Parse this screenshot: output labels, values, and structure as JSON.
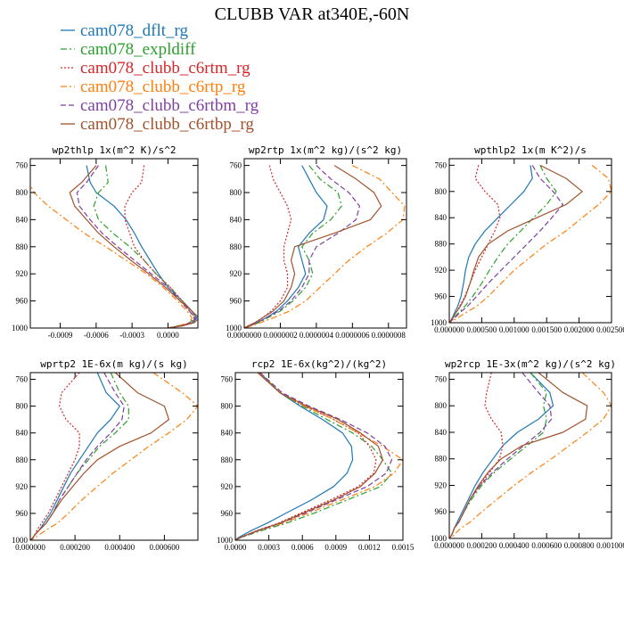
{
  "figure": {
    "title": "CLUBB VAR at340E,-60N"
  },
  "legend": [
    {
      "name": "cam078_dflt_rg",
      "color": "#1f77b4",
      "dash": "solid"
    },
    {
      "name": "cam078_expldiff",
      "color": "#2ca02c",
      "dash": "dashdot"
    },
    {
      "name": "cam078_clubb_c6rtm_rg",
      "color": "#d62728",
      "dash": "dotted"
    },
    {
      "name": "cam078_clubb_c6rtp_rg",
      "color": "#ff7f0e",
      "dash": "dashdot"
    },
    {
      "name": "cam078_clubb_c6rtbm_rg",
      "color": "#7f3fa0",
      "dash": "dashed"
    },
    {
      "name": "cam078_clubb_c6rtbp_rg",
      "color": "#a0522d",
      "dash": "solid"
    }
  ],
  "chart_data": [
    {
      "type": "line",
      "title": "wp2thlp  1x(m^2 K)/s^2",
      "xlim": [
        -0.00115,
        0.00025
      ],
      "ylim": [
        750,
        1000
      ],
      "y_inverted": true,
      "yticks": [
        760,
        800,
        840,
        880,
        920,
        960,
        1000
      ],
      "xticks": [
        -0.0009,
        -0.0006,
        -0.0003,
        0.0
      ],
      "xtick_labels": [
        "-0.0009",
        "-0.0006",
        "-0.0003",
        "0.0000"
      ],
      "y": [
        760,
        785,
        800,
        820,
        840,
        860,
        880,
        900,
        920,
        940,
        960,
        975,
        985,
        992,
        997,
        1000
      ],
      "series": [
        {
          "values": [
            -0.00068,
            -0.00065,
            -0.0006,
            -0.00045,
            -0.00035,
            -0.00028,
            -0.00022,
            -0.00015,
            -8e-05,
            0.0,
            0.00012,
            0.0002,
            0.00024,
            0.00021,
            0.0001,
            0.0
          ]
        },
        {
          "values": [
            -0.00052,
            -0.0005,
            -0.00058,
            -0.00062,
            -0.00058,
            -0.00046,
            -0.00032,
            -0.0002,
            -0.0001,
            2e-05,
            0.00012,
            0.00018,
            0.00022,
            0.00018,
            8e-05,
            0.0
          ]
        },
        {
          "values": [
            -0.0002,
            -0.00022,
            -0.0003,
            -0.00036,
            -0.00036,
            -0.00032,
            -0.00028,
            -0.0002,
            -0.0001,
            2e-05,
            0.00012,
            0.0002,
            0.00022,
            0.0002,
            0.0001,
            0.0
          ]
        },
        {
          "values": [
            -0.00115,
            -0.00116,
            -0.00112,
            -0.001,
            -0.00085,
            -0.0007,
            -0.00052,
            -0.00035,
            -0.00018,
            -4e-05,
            8e-05,
            0.00016,
            0.0002,
            0.00018,
            8e-05,
            0.0
          ]
        },
        {
          "values": [
            -0.00058,
            -0.00068,
            -0.00076,
            -0.00074,
            -0.00065,
            -0.00055,
            -0.00042,
            -0.00028,
            -0.00014,
            0.0,
            0.0001,
            0.00018,
            0.00023,
            0.0002,
            0.0001,
            0.0
          ]
        },
        {
          "values": [
            -0.0006,
            -0.00072,
            -0.00082,
            -0.00078,
            -0.00068,
            -0.00058,
            -0.00045,
            -0.00031,
            -0.00016,
            -2e-05,
            0.0001,
            0.0002,
            0.00026,
            0.00022,
            0.00012,
            0.0
          ]
        }
      ]
    },
    {
      "type": "line",
      "title": "wp2rtp  1x(m^2 kg)/(s^2 kg)",
      "xlim": [
        0.0,
        9e-07
      ],
      "ylim": [
        750,
        1000
      ],
      "y_inverted": true,
      "yticks": [
        760,
        800,
        840,
        880,
        920,
        960,
        1000
      ],
      "xticks": [
        0.0,
        2e-07,
        4e-07,
        6e-07,
        8e-07
      ],
      "xtick_labels": [
        "0.0000000",
        "0.0000002",
        "0.0000004",
        "0.0000006",
        "0.0000008"
      ],
      "y": [
        760,
        780,
        800,
        820,
        840,
        860,
        880,
        900,
        920,
        940,
        960,
        975,
        985,
        992,
        997,
        1000
      ],
      "series": [
        {
          "values": [
            3.2e-07,
            3.6e-07,
            4e-07,
            4.6e-07,
            4.4e-07,
            3.6e-07,
            3e-07,
            3.2e-07,
            3.4e-07,
            3e-07,
            2.4e-07,
            1.8e-07,
            1.2e-07,
            7e-08,
            3e-08,
            0.0
          ]
        },
        {
          "values": [
            3.6e-07,
            4.2e-07,
            5.2e-07,
            5.4e-07,
            4.8e-07,
            3.8e-07,
            3.2e-07,
            3.6e-07,
            3.8e-07,
            3.4e-07,
            2.7e-07,
            2e-07,
            1.3e-07,
            8e-08,
            3e-08,
            0.0
          ]
        },
        {
          "values": [
            1.4e-07,
            1.6e-07,
            2e-07,
            2.4e-07,
            2.6e-07,
            2.4e-07,
            2.2e-07,
            2.2e-07,
            2.4e-07,
            2.4e-07,
            2e-07,
            1.5e-07,
            1e-07,
            6e-08,
            2e-08,
            0.0
          ]
        },
        {
          "values": [
            6e-07,
            7.5e-07,
            8.2e-07,
            8.9e-07,
            8.8e-07,
            7.9e-07,
            6.8e-07,
            5.8e-07,
            5e-07,
            4.2e-07,
            3.4e-07,
            2.5e-07,
            1.6e-07,
            9e-08,
            4e-08,
            0.0
          ]
        },
        {
          "values": [
            4e-07,
            4.8e-07,
            5.8e-07,
            6.4e-07,
            6.2e-07,
            5.2e-07,
            4e-07,
            3.6e-07,
            3.6e-07,
            3.2e-07,
            2.6e-07,
            1.9e-07,
            1.2e-07,
            7e-08,
            3e-08,
            0.0
          ]
        },
        {
          "values": [
            5e-07,
            6.2e-07,
            7.2e-07,
            7.6e-07,
            7e-07,
            5e-07,
            2.8e-07,
            2.6e-07,
            2.8e-07,
            2.6e-07,
            2.2e-07,
            1.6e-07,
            1e-07,
            6e-08,
            2e-08,
            0.0
          ]
        }
      ]
    },
    {
      "type": "line",
      "title": "wpthlp2  1x(m K^2)/s",
      "xlim": [
        0.0,
        0.0025
      ],
      "ylim": [
        750,
        1000
      ],
      "y_inverted": true,
      "yticks": [
        760,
        800,
        840,
        880,
        920,
        960,
        1000
      ],
      "xticks": [
        0.0,
        0.0005,
        0.001,
        0.0015,
        0.002,
        0.0025
      ],
      "xtick_labels": [
        "0.000000",
        "0.000500",
        "0.001000",
        "0.001500",
        "0.002000",
        "0.002500"
      ],
      "y": [
        760,
        780,
        800,
        820,
        840,
        860,
        880,
        900,
        920,
        940,
        960,
        975,
        985,
        992,
        997,
        1000
      ],
      "series": [
        {
          "values": [
            0.00125,
            0.00128,
            0.00115,
            0.00095,
            0.00075,
            0.00055,
            0.0004,
            0.0003,
            0.00025,
            0.00022,
            0.00018,
            0.00013,
            8e-05,
            5e-05,
            2e-05,
            0.0
          ]
        },
        {
          "values": [
            0.0014,
            0.0015,
            0.00165,
            0.0015,
            0.0013,
            0.0011,
            0.0009,
            0.00075,
            0.00062,
            0.0005,
            0.00036,
            0.00024,
            0.00014,
            8e-05,
            3e-05,
            0.0
          ]
        },
        {
          "values": [
            0.00045,
            0.0004,
            0.00055,
            0.00075,
            0.00078,
            0.0007,
            0.0006,
            0.0005,
            0.0004,
            0.00032,
            0.00024,
            0.00016,
            0.0001,
            6e-05,
            2e-05,
            0.0
          ]
        },
        {
          "values": [
            0.0022,
            0.00245,
            0.0025,
            0.0023,
            0.00205,
            0.0018,
            0.0015,
            0.00125,
            0.001,
            0.0008,
            0.0006,
            0.00042,
            0.00025,
            0.00014,
            5e-05,
            0.0
          ]
        },
        {
          "values": [
            0.00128,
            0.0014,
            0.0016,
            0.00175,
            0.00158,
            0.0014,
            0.0012,
            0.001,
            0.0008,
            0.0006,
            0.00042,
            0.00028,
            0.00016,
            9e-05,
            3e-05,
            0.0
          ]
        },
        {
          "values": [
            0.0014,
            0.0018,
            0.00205,
            0.0018,
            0.00135,
            0.0009,
            0.0006,
            0.00045,
            0.00038,
            0.00032,
            0.00025,
            0.00017,
            0.0001,
            6e-05,
            2e-05,
            0.0
          ]
        }
      ]
    },
    {
      "type": "line",
      "title": "wprtp2  1E-6x(m kg)/(s kg)",
      "xlim": [
        0.0,
        0.00075
      ],
      "ylim": [
        750,
        1000
      ],
      "y_inverted": true,
      "yticks": [
        760,
        800,
        840,
        880,
        920,
        960,
        1000
      ],
      "xticks": [
        0.0,
        0.0002,
        0.0004,
        0.0006
      ],
      "xtick_labels": [
        "0.000000",
        "0.000200",
        "0.000400",
        "0.000600"
      ],
      "y": [
        750,
        780,
        800,
        820,
        840,
        860,
        880,
        900,
        920,
        940,
        960,
        975,
        985,
        992,
        997,
        1000
      ],
      "series": [
        {
          "values": [
            0.0003,
            0.00034,
            0.0004,
            0.00036,
            0.0003,
            0.00026,
            0.00022,
            0.00018,
            0.00015,
            0.00012,
            9e-05,
            6e-05,
            4e-05,
            2e-05,
            1e-05,
            0.0
          ]
        },
        {
          "values": [
            0.00036,
            0.0004,
            0.00044,
            0.00044,
            0.00038,
            0.00031,
            0.00026,
            0.00021,
            0.00017,
            0.00013,
            0.0001,
            7e-05,
            4e-05,
            2e-05,
            1e-05,
            0.0
          ]
        },
        {
          "values": [
            0.00022,
            0.00014,
            0.00013,
            0.00016,
            0.00022,
            0.00022,
            0.0002,
            0.00017,
            0.00014,
            0.00011,
            8e-05,
            5e-05,
            3e-05,
            2e-05,
            1e-05,
            0.0
          ]
        },
        {
          "values": [
            0.00055,
            0.00068,
            0.00075,
            0.0007,
            0.00062,
            0.00053,
            0.00045,
            0.00037,
            0.0003,
            0.00023,
            0.00017,
            0.00012,
            7e-05,
            4e-05,
            2e-05,
            0.0
          ]
        },
        {
          "values": [
            0.00033,
            0.00038,
            0.00042,
            0.00041,
            0.00036,
            0.0003,
            0.00025,
            0.00021,
            0.00017,
            0.00013,
            0.0001,
            7e-05,
            4e-05,
            2e-05,
            1e-05,
            0.0
          ]
        },
        {
          "values": [
            0.00038,
            0.00048,
            0.0006,
            0.00062,
            0.00054,
            0.0004,
            0.0003,
            0.00024,
            0.00019,
            0.00014,
            0.0001,
            7e-05,
            4e-05,
            2e-05,
            1e-05,
            0.0
          ]
        }
      ]
    },
    {
      "type": "line",
      "title": "rcp2  1E-6x(kg^2)/(kg^2)",
      "xlim": [
        0.0,
        0.0015
      ],
      "ylim": [
        750,
        1000
      ],
      "y_inverted": true,
      "yticks": [
        760,
        800,
        840,
        880,
        920,
        960,
        1000
      ],
      "xticks": [
        0.0,
        0.0003,
        0.0006,
        0.0009,
        0.0012,
        0.0015
      ],
      "xtick_labels": [
        "0.0000",
        "0.0003",
        "0.0006",
        "0.0009",
        "0.0012",
        "0.0015"
      ],
      "y": [
        750,
        780,
        800,
        820,
        840,
        860,
        880,
        900,
        920,
        940,
        960,
        975,
        985,
        992,
        997,
        1000
      ],
      "series": [
        {
          "values": [
            0.00022,
            0.0004,
            0.00058,
            0.00078,
            0.00096,
            0.00104,
            0.00105,
            0.001,
            0.00088,
            0.00068,
            0.00045,
            0.00028,
            0.00015,
            7e-05,
            2e-05,
            0.0
          ]
        },
        {
          "values": [
            0.00022,
            0.0004,
            0.0006,
            0.00082,
            0.00105,
            0.00122,
            0.00132,
            0.0014,
            0.0013,
            0.001,
            0.0007,
            0.00045,
            0.00025,
            0.00012,
            4e-05,
            0.0
          ]
        },
        {
          "values": [
            0.0002,
            0.0004,
            0.00062,
            0.00088,
            0.0011,
            0.0012,
            0.00126,
            0.00124,
            0.0011,
            0.00085,
            0.00058,
            0.00038,
            0.0002,
            0.0001,
            3e-05,
            0.0
          ]
        },
        {
          "values": [
            0.00021,
            0.0004,
            0.00062,
            0.00088,
            0.0011,
            0.00132,
            0.0015,
            0.00142,
            0.00125,
            0.00095,
            0.00065,
            0.00042,
            0.00022,
            0.00011,
            3e-05,
            0.0
          ]
        },
        {
          "values": [
            0.00022,
            0.00042,
            0.00066,
            0.00094,
            0.00118,
            0.00134,
            0.0014,
            0.00135,
            0.00118,
            0.0009,
            0.00062,
            0.0004,
            0.00022,
            0.00011,
            3e-05,
            0.0
          ]
        },
        {
          "values": [
            0.0002,
            0.0004,
            0.00064,
            0.00092,
            0.00112,
            0.00128,
            0.00132,
            0.00125,
            0.00112,
            0.00088,
            0.0006,
            0.00039,
            0.00021,
            0.0001,
            3e-05,
            0.0
          ]
        }
      ]
    },
    {
      "type": "line",
      "title": "wp2rcp  1E-3x(m^2 kg)/(s^2 kg)",
      "xlim": [
        0.0,
        0.001
      ],
      "ylim": [
        750,
        1000
      ],
      "y_inverted": true,
      "yticks": [
        760,
        800,
        840,
        880,
        920,
        960,
        1000
      ],
      "xticks": [
        0.0,
        0.0002,
        0.0004,
        0.0006,
        0.0008,
        0.001
      ],
      "xtick_labels": [
        "0.000000",
        "0.000200",
        "0.000400",
        "0.000600",
        "0.000800",
        "0.001000"
      ],
      "y": [
        750,
        780,
        800,
        820,
        840,
        860,
        880,
        900,
        920,
        940,
        960,
        975,
        985,
        992,
        997,
        1000
      ],
      "series": [
        {
          "values": [
            0.0005,
            0.00062,
            0.00064,
            0.00055,
            0.00042,
            0.00033,
            0.00027,
            0.00021,
            0.00016,
            0.00012,
            8e-05,
            5e-05,
            3e-05,
            2e-05,
            1e-05,
            0.0
          ]
        },
        {
          "values": [
            0.0005,
            0.0006,
            0.00058,
            0.0006,
            0.00058,
            0.00048,
            0.00038,
            0.00028,
            0.0002,
            0.00014,
            9e-05,
            6e-05,
            3e-05,
            2e-05,
            1e-05,
            0.0
          ]
        },
        {
          "values": [
            0.00026,
            0.00023,
            0.00022,
            0.00026,
            0.00032,
            0.00033,
            0.00031,
            0.00025,
            0.00019,
            0.00013,
            9e-05,
            6e-05,
            3e-05,
            2e-05,
            1e-05,
            0.0
          ]
        },
        {
          "values": [
            0.00082,
            0.00095,
            0.001,
            0.00095,
            0.00085,
            0.00074,
            0.00063,
            0.00051,
            0.0004,
            0.0003,
            0.0002,
            0.00013,
            7e-05,
            4e-05,
            2e-05,
            0.0
          ]
        },
        {
          "values": [
            0.00045,
            0.00055,
            0.00062,
            0.00063,
            0.00056,
            0.00046,
            0.00036,
            0.00027,
            0.00019,
            0.00013,
            9e-05,
            6e-05,
            3e-05,
            2e-05,
            1e-05,
            0.0
          ]
        },
        {
          "values": [
            0.00055,
            0.0007,
            0.00085,
            0.00084,
            0.0007,
            0.00045,
            0.00032,
            0.00024,
            0.00018,
            0.00013,
            9e-05,
            6e-05,
            3e-05,
            2e-05,
            1e-05,
            0.0
          ]
        }
      ]
    }
  ]
}
